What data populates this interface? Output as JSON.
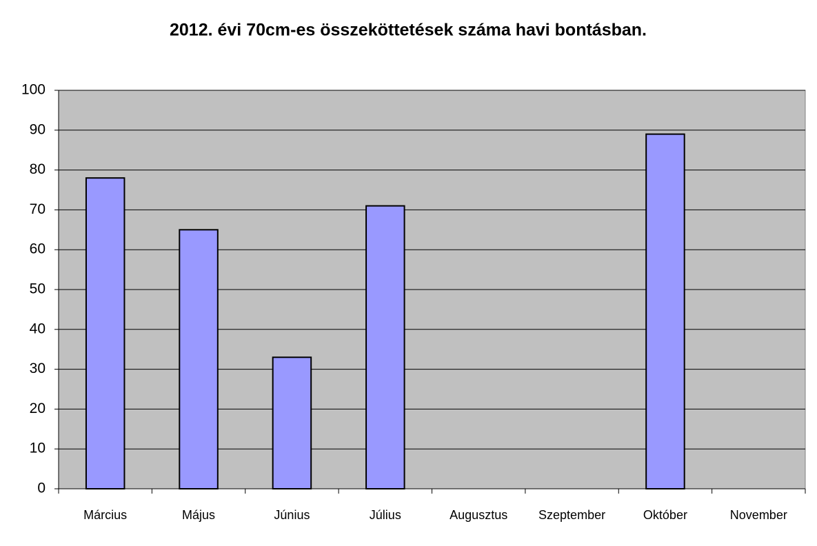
{
  "chart_data": {
    "type": "bar",
    "title": "2012. évi 70cm-es összeköttetések száma havi bontásban.",
    "categories": [
      "Március",
      "Május",
      "Június",
      "Július",
      "Augusztus",
      "Szeptember",
      "Október",
      "November"
    ],
    "values": [
      78,
      65,
      33,
      71,
      null,
      null,
      89,
      null
    ],
    "color": "#9999ff",
    "ylim": [
      0,
      100
    ],
    "yticks": [
      0,
      10,
      20,
      30,
      40,
      50,
      60,
      70,
      80,
      90,
      100
    ],
    "grid": true
  }
}
